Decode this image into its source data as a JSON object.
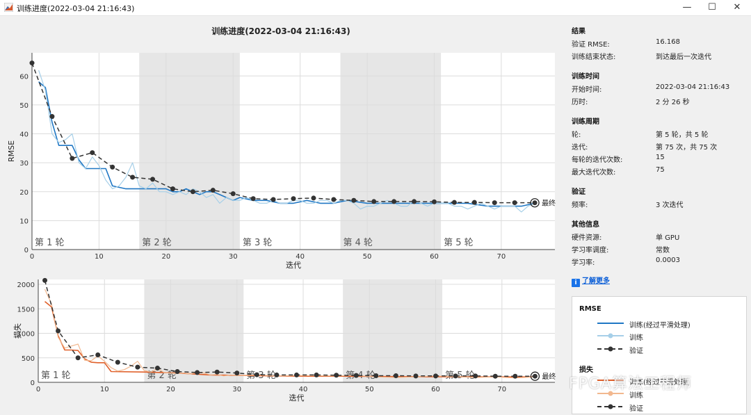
{
  "window": {
    "title": "训练进度(2022-03-04 21:16:43)"
  },
  "plot_title": "训练进度(2022-03-04 21:16:43)",
  "epoch_labels": [
    "第 1 轮",
    "第 2 轮",
    "第 3 轮",
    "第 4 轮",
    "第 5 轮"
  ],
  "final_label": "最终",
  "results": {
    "heading": "结果",
    "rows": [
      {
        "label": "验证 RMSE:",
        "value": "16.168"
      },
      {
        "label": "训练结束状态:",
        "value": "到达最后一次迭代"
      }
    ]
  },
  "training_time": {
    "heading": "训练时间",
    "rows": [
      {
        "label": "开始时间:",
        "value": "2022-03-04 21:16:43"
      },
      {
        "label": "历时:",
        "value": "2 分 26 秒"
      }
    ]
  },
  "training_cycle": {
    "heading": "训练周期",
    "rows": [
      {
        "label": "轮:",
        "value": "第 5 轮，共 5 轮"
      },
      {
        "label": "迭代:",
        "value": "第 75 次，共 75 次"
      },
      {
        "label": "每轮的迭代次数:",
        "value": "15"
      },
      {
        "label": "最大迭代次数:",
        "value": "75"
      }
    ]
  },
  "validation": {
    "heading": "验证",
    "rows": [
      {
        "label": "频率:",
        "value": "3 次迭代"
      }
    ]
  },
  "other_info": {
    "heading": "其他信息",
    "rows": [
      {
        "label": "硬件资源:",
        "value": "单 GPU"
      },
      {
        "label": "学习率调度:",
        "value": "常数"
      },
      {
        "label": "学习率:",
        "value": "0.0003"
      }
    ]
  },
  "learn_more": "了解更多",
  "legend": {
    "rmse_heading": "RMSE",
    "loss_heading": "损失",
    "rmse_items": [
      "训练(经过平滑处理)",
      "训练",
      "验证"
    ],
    "loss_items": [
      "训练(经过平滑处理)",
      "训练",
      "验证"
    ]
  },
  "watermark": "FPGA算法工程师",
  "colors": {
    "smoothed_rmse": "#1f77c4",
    "raw_rmse": "#a6cfe8",
    "smoothed_loss": "#e0602a",
    "raw_loss": "#f2b88f",
    "validation": "#333333",
    "epoch_shade": "#e6e6e6"
  },
  "chart_data": [
    {
      "type": "line",
      "title": "训练进度(2022-03-04 21:16:43)",
      "xlabel": "迭代",
      "ylabel": "RMSE",
      "xlim": [
        0,
        78
      ],
      "ylim": [
        0,
        68
      ],
      "xticks": [
        0,
        10,
        20,
        30,
        40,
        50,
        60,
        70
      ],
      "yticks": [
        0,
        10,
        20,
        30,
        40,
        50,
        60
      ],
      "grid": true,
      "epochs": [
        [
          0,
          16
        ],
        [
          16,
          31
        ],
        [
          31,
          46
        ],
        [
          46,
          61
        ],
        [
          61,
          76
        ]
      ],
      "series": [
        {
          "name": "训练(经过平滑处理)",
          "x": [
            1,
            2,
            3,
            4,
            5,
            6,
            7,
            8,
            9,
            10,
            11,
            12,
            14,
            16,
            17,
            18,
            19,
            20,
            21,
            22,
            23,
            24,
            25,
            26,
            27,
            28,
            29,
            30,
            31,
            33,
            35,
            37,
            39,
            41,
            43,
            45,
            47,
            50,
            53,
            56,
            59,
            62,
            65,
            68,
            71,
            73,
            75
          ],
          "y": [
            58,
            56,
            44,
            36,
            36,
            36,
            31,
            28,
            28,
            28,
            28,
            22,
            21,
            21,
            21,
            21,
            21,
            21,
            20,
            20,
            21,
            20,
            19,
            20,
            20,
            19,
            18,
            17,
            18,
            17,
            17,
            16,
            16,
            17,
            16,
            16,
            17,
            16,
            16,
            16,
            16,
            16,
            16,
            15,
            15,
            15,
            16
          ]
        },
        {
          "name": "训练",
          "x": [
            1,
            2,
            3,
            4,
            5,
            6,
            7,
            8,
            9,
            10,
            11,
            12,
            13,
            14,
            15,
            16,
            17,
            18,
            19,
            20,
            21,
            22,
            23,
            24,
            25,
            26,
            27,
            28,
            29,
            30,
            31,
            32,
            33,
            34,
            35,
            36,
            37,
            38,
            39,
            40,
            41,
            42,
            43,
            44,
            45,
            46,
            47,
            48,
            49,
            50,
            51,
            52,
            53,
            54,
            55,
            56,
            57,
            58,
            59,
            60,
            61,
            62,
            63,
            64,
            65,
            66,
            67,
            68,
            69,
            70,
            71,
            72,
            73,
            74,
            75
          ],
          "y": [
            62,
            55,
            40,
            37,
            38,
            40,
            30,
            28,
            32,
            29,
            24,
            21,
            22,
            25,
            30,
            22,
            21,
            23,
            20,
            20,
            19,
            20,
            19,
            21,
            20,
            18,
            19,
            16,
            18,
            17,
            17,
            18,
            17,
            16,
            16,
            17,
            16,
            16,
            17,
            17,
            16,
            16,
            17,
            17,
            16,
            17,
            17,
            16,
            14,
            15,
            15,
            16,
            17,
            16,
            15,
            15,
            17,
            16,
            15,
            16,
            16,
            16,
            15,
            15,
            14,
            15,
            16,
            15,
            14,
            15,
            15,
            15,
            13,
            15,
            16
          ]
        },
        {
          "name": "验证",
          "x": [
            0,
            3,
            6,
            9,
            12,
            15,
            18,
            21,
            24,
            27,
            30,
            33,
            36,
            39,
            42,
            45,
            48,
            51,
            54,
            57,
            60,
            63,
            66,
            69,
            72,
            75
          ],
          "y": [
            64.5,
            46,
            31.5,
            33.5,
            28.5,
            25,
            24.3,
            21,
            20,
            20.5,
            19.3,
            17.6,
            17.3,
            17.6,
            17.8,
            17.3,
            17,
            16.6,
            16.6,
            16.6,
            16.5,
            16.3,
            16.3,
            16.2,
            16.2,
            16.168
          ]
        }
      ]
    },
    {
      "type": "line",
      "xlabel": "迭代",
      "ylabel": "损失",
      "xlim": [
        0,
        78
      ],
      "ylim": [
        0,
        2100
      ],
      "xticks": [
        0,
        10,
        20,
        30,
        40,
        50,
        60,
        70
      ],
      "yticks": [
        0,
        500,
        1000,
        1500,
        2000
      ],
      "grid": true,
      "epochs": [
        [
          0,
          16
        ],
        [
          16,
          31
        ],
        [
          31,
          46
        ],
        [
          46,
          61
        ],
        [
          61,
          76
        ]
      ],
      "series": [
        {
          "name": "训练(经过平滑处理)",
          "x": [
            1,
            2,
            3,
            4,
            5,
            6,
            7,
            8,
            9,
            10,
            11,
            16,
            21,
            26,
            31,
            36,
            41,
            46,
            51,
            56,
            61,
            66,
            71,
            75
          ],
          "y": [
            1650,
            1540,
            950,
            660,
            660,
            650,
            480,
            410,
            400,
            400,
            220,
            210,
            190,
            150,
            140,
            130,
            125,
            125,
            120,
            115,
            115,
            110,
            110,
            110
          ]
        },
        {
          "name": "训练",
          "x": [
            1,
            2,
            3,
            4,
            5,
            6,
            7,
            8,
            9,
            10,
            11,
            12,
            13,
            14,
            15,
            16,
            17,
            18,
            19,
            20,
            21,
            22,
            23,
            24,
            25,
            26,
            27,
            28,
            29,
            30,
            31,
            33,
            36,
            39,
            42,
            45,
            48,
            51,
            54,
            57,
            60,
            63,
            66,
            69,
            72,
            75
          ],
          "y": [
            1900,
            1600,
            920,
            700,
            740,
            780,
            450,
            440,
            540,
            430,
            300,
            230,
            260,
            330,
            430,
            240,
            210,
            280,
            200,
            190,
            180,
            190,
            170,
            210,
            190,
            150,
            160,
            130,
            150,
            140,
            140,
            150,
            130,
            140,
            135,
            130,
            140,
            110,
            100,
            110,
            130,
            115,
            100,
            110,
            90,
            110
          ]
        },
        {
          "name": "验证",
          "x": [
            1,
            3,
            6,
            9,
            12,
            15,
            18,
            21,
            24,
            27,
            30,
            33,
            36,
            39,
            42,
            45,
            48,
            51,
            54,
            57,
            60,
            63,
            66,
            69,
            72,
            75
          ],
          "y": [
            2080,
            1050,
            500,
            560,
            410,
            310,
            290,
            220,
            200,
            210,
            190,
            155,
            150,
            150,
            150,
            145,
            140,
            135,
            135,
            130,
            130,
            130,
            130,
            125,
            125,
            125
          ]
        }
      ]
    }
  ]
}
